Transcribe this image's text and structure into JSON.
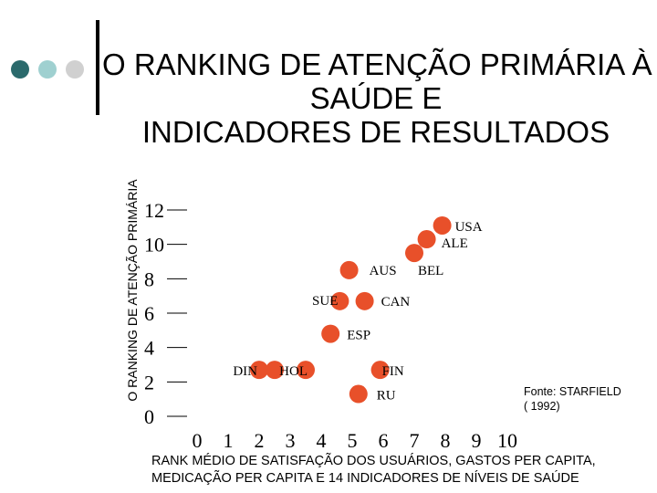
{
  "slide": {
    "title_lines": [
      "O RANKING DE ATENÇÃO PRIMÁRIA À",
      "SAÚDE E",
      "INDICADORES DE RESULTADOS"
    ],
    "bullet_colors": [
      "#2b6a6c",
      "#9fd0d0",
      "#d0d0d0"
    ],
    "source_lines": [
      "Fonte: STARFIELD",
      "( 1992)"
    ]
  },
  "chart_data": {
    "type": "scatter",
    "title": "",
    "ylabel": "O RANKING DE ATENÇÃO PRIMÁRIA",
    "xlabel_lines": [
      "RANK MÉDIO DE SATISFAÇÃO DOS USUÁRIOS, GASTOS PER CAPITA,",
      "MEDICAÇÃO PER  CAPITA E 14 INDICADORES DE NÍVEIS DE SAÚDE"
    ],
    "xlim": [
      0,
      10
    ],
    "ylim": [
      0,
      12
    ],
    "xticks": [
      0,
      1,
      2,
      3,
      4,
      5,
      6,
      7,
      8,
      9,
      10
    ],
    "yticks": [
      0,
      2,
      4,
      6,
      8,
      10,
      12
    ],
    "grid": false,
    "marker_color": "#e8502a",
    "points": [
      {
        "label": "USA",
        "x": 7.9,
        "y": 11.1
      },
      {
        "label": "ALE",
        "x": 7.4,
        "y": 10.3
      },
      {
        "label": "BEL",
        "x": 7.0,
        "y": 9.5
      },
      {
        "label": "AUS",
        "x": 4.9,
        "y": 8.5
      },
      {
        "label": "SUE",
        "x": 4.6,
        "y": 6.7
      },
      {
        "label": "CAN",
        "x": 5.4,
        "y": 6.7
      },
      {
        "label": "ESP",
        "x": 4.3,
        "y": 4.8
      },
      {
        "label": "DIN",
        "x": 2.0,
        "y": 2.7
      },
      {
        "label": "",
        "x": 2.5,
        "y": 2.7
      },
      {
        "label": "HOL",
        "x": 3.5,
        "y": 2.7
      },
      {
        "label": "FIN",
        "x": 5.9,
        "y": 2.7
      },
      {
        "label": "RU",
        "x": 5.2,
        "y": 1.3
      }
    ]
  }
}
